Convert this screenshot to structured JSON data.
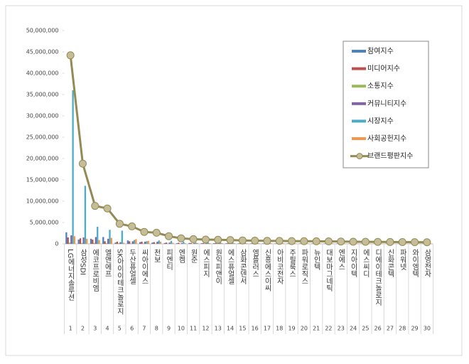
{
  "chart_data": {
    "type": "bar",
    "categories": [
      "LG에너지솔루션",
      "삼성SDI",
      "에코프로비엠",
      "엘앤에프",
      "SK아이이테크놀로지",
      "두산퓨얼셀",
      "씨아이에스",
      "천보",
      "피엔티",
      "엔켐",
      "원준",
      "에스피지",
      "원익피앤이",
      "에스퓨얼셀",
      "삼화콘덴서",
      "엠플러스",
      "신흥에스이씨",
      "아비코전자",
      "주필룩스",
      "파워로직스",
      "뉴인텍",
      "대보마그네틱",
      "엔에스",
      "지아이텍",
      "에스씨디",
      "디에이테크놀로지",
      "신화콘텍",
      "파워넷",
      "와이엠텍",
      "삼영전자"
    ],
    "category_numbers": [
      1,
      2,
      3,
      4,
      5,
      6,
      7,
      8,
      9,
      10,
      11,
      12,
      13,
      14,
      15,
      16,
      17,
      18,
      19,
      20,
      21,
      22,
      23,
      24,
      25,
      26,
      27,
      28,
      29,
      30
    ],
    "series": [
      {
        "name": "참여지수",
        "color": "#4f81bd",
        "values": [
          2700000,
          1000000,
          1200000,
          1600000,
          300000,
          800000,
          400000,
          300000,
          200000,
          150000,
          200000,
          150000,
          150000,
          120000,
          120000,
          100000,
          100000,
          100000,
          100000,
          100000,
          90000,
          90000,
          80000,
          80000,
          80000,
          70000,
          70000,
          70000,
          60000,
          60000
        ]
      },
      {
        "name": "미디어지수",
        "color": "#c0504d",
        "values": [
          1500000,
          1300000,
          1000000,
          600000,
          500000,
          600000,
          500000,
          400000,
          300000,
          250000,
          200000,
          180000,
          160000,
          150000,
          140000,
          130000,
          120000,
          110000,
          110000,
          100000,
          100000,
          90000,
          90000,
          80000,
          80000,
          80000,
          70000,
          70000,
          70000,
          60000
        ]
      },
      {
        "name": "소통지수",
        "color": "#9bbb59",
        "values": [
          300000,
          200000,
          200000,
          150000,
          150000,
          100000,
          100000,
          80000,
          70000,
          60000,
          60000,
          50000,
          50000,
          50000,
          40000,
          40000,
          40000,
          40000,
          30000,
          30000,
          30000,
          30000,
          30000,
          30000,
          20000,
          20000,
          20000,
          20000,
          20000,
          20000
        ]
      },
      {
        "name": "커뮤니티지수",
        "color": "#8064a2",
        "values": [
          2000000,
          1500000,
          1600000,
          1200000,
          400000,
          600000,
          500000,
          500000,
          300000,
          200000,
          150000,
          150000,
          130000,
          120000,
          110000,
          100000,
          100000,
          90000,
          90000,
          90000,
          80000,
          80000,
          80000,
          70000,
          70000,
          70000,
          60000,
          60000,
          60000,
          50000
        ]
      },
      {
        "name": "시장지수",
        "color": "#4bacc6",
        "values": [
          36000000,
          13600000,
          4000000,
          3300000,
          3100000,
          900000,
          600000,
          800000,
          700000,
          500000,
          300000,
          300000,
          300000,
          300000,
          250000,
          250000,
          200000,
          200000,
          200000,
          180000,
          180000,
          170000,
          160000,
          140000,
          130000,
          120000,
          110000,
          100000,
          100000,
          90000
        ]
      },
      {
        "name": "사회공헌지수",
        "color": "#f79646",
        "values": [
          1800000,
          1200000,
          900000,
          1400000,
          250000,
          1100000,
          700000,
          500000,
          230000,
          140000,
          190000,
          170000,
          160000,
          160000,
          140000,
          130000,
          140000,
          140000,
          120000,
          110000,
          120000,
          120000,
          110000,
          100000,
          100000,
          90000,
          90000,
          90000,
          90000,
          90000
        ]
      },
      {
        "name": "브랜드평판지수",
        "color": "#948a54",
        "type": "line",
        "values": [
          44200000,
          18800000,
          8900000,
          8300000,
          4700000,
          4100000,
          2800000,
          2600000,
          1800000,
          1300000,
          1100000,
          1000000,
          950000,
          900000,
          800000,
          750000,
          700000,
          680000,
          650000,
          620000,
          600000,
          580000,
          550000,
          500000,
          480000,
          460000,
          440000,
          420000,
          400000,
          380000
        ]
      }
    ],
    "ylim": [
      0,
      50000000
    ],
    "yticks": [
      0,
      {
        "value": 5000000,
        "label": "5,000,000"
      },
      {
        "value": 10000000,
        "label": "10,000,000"
      },
      {
        "value": 15000000,
        "label": "15,000,000"
      },
      {
        "value": 20000000,
        "label": "20,000,000"
      },
      {
        "value": 25000000,
        "label": "25,000,000"
      },
      {
        "value": 30000000,
        "label": "30,000,000"
      },
      {
        "value": 35000000,
        "label": "35,000,000"
      },
      {
        "value": 40000000,
        "label": "40,000,000"
      },
      {
        "value": 45000000,
        "label": "45,000,000"
      },
      {
        "value": 50000000,
        "label": "50,000,000"
      }
    ],
    "grid": false,
    "legend": "top-right"
  }
}
